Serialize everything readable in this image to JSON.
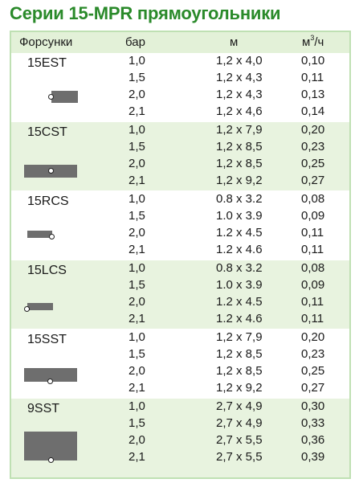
{
  "title": "Серии 15-MPR прямоугольники",
  "header": {
    "nozzles": "Форсунки",
    "pressure": "бар",
    "distance": "м",
    "flow_base": "м",
    "flow_sup": "3",
    "flow_tail": "/ч"
  },
  "groups": [
    {
      "name": "15EST",
      "icon": "rectangle-spray-end-strip-icon",
      "rows": [
        {
          "bar": "1,0",
          "m": "1,2 x 4,0",
          "q": "0,10"
        },
        {
          "bar": "1,5",
          "m": "1,2 x 4,3",
          "q": "0,11"
        },
        {
          "bar": "2,0",
          "m": "1,2 x 4,3",
          "q": "0,13"
        },
        {
          "bar": "2,1",
          "m": "1,2 x 4,6",
          "q": "0,14"
        }
      ]
    },
    {
      "name": "15CST",
      "icon": "rectangle-spray-center-strip-icon",
      "rows": [
        {
          "bar": "1,0",
          "m": "1,2 x 7,9",
          "q": "0,20"
        },
        {
          "bar": "1,5",
          "m": "1,2 x 8,5",
          "q": "0,23"
        },
        {
          "bar": "2,0",
          "m": "1,2 x 8,5",
          "q": "0,25"
        },
        {
          "bar": "2,1",
          "m": "1,2 x 9,2",
          "q": "0,27"
        }
      ]
    },
    {
      "name": "15RCS",
      "icon": "rectangle-spray-right-corner-strip-icon",
      "rows": [
        {
          "bar": "1,0",
          "m": "0.8 x 3.2",
          "q": "0,08"
        },
        {
          "bar": "1,5",
          "m": "1.0 x 3.9",
          "q": "0,09"
        },
        {
          "bar": "2,0",
          "m": "1.2 x 4.5",
          "q": "0,11"
        },
        {
          "bar": "2,1",
          "m": "1.2 x 4.6",
          "q": "0,11"
        }
      ]
    },
    {
      "name": "15LCS",
      "icon": "rectangle-spray-left-corner-strip-icon",
      "rows": [
        {
          "bar": "1,0",
          "m": "0.8 x 3.2",
          "q": "0,08"
        },
        {
          "bar": "1,5",
          "m": "1.0 x 3.9",
          "q": "0,09"
        },
        {
          "bar": "2,0",
          "m": "1.2 x 4.5",
          "q": "0,11"
        },
        {
          "bar": "2,1",
          "m": "1.2 x 4.6",
          "q": "0,11"
        }
      ]
    },
    {
      "name": "15SST",
      "icon": "rectangle-spray-side-strip-icon",
      "rows": [
        {
          "bar": "1,0",
          "m": "1,2 x 7,9",
          "q": "0,20"
        },
        {
          "bar": "1,5",
          "m": "1,2 x 8,5",
          "q": "0,23"
        },
        {
          "bar": "2,0",
          "m": "1,2 x 8,5",
          "q": "0,25"
        },
        {
          "bar": "2,1",
          "m": "1,2 x 9,2",
          "q": "0,27"
        }
      ]
    },
    {
      "name": "9SST",
      "icon": "square-spray-side-icon",
      "rows": [
        {
          "bar": "1,0",
          "m": "2,7 x 4,9",
          "q": "0,30"
        },
        {
          "bar": "1,5",
          "m": "2,7 x 4,9",
          "q": "0,33"
        },
        {
          "bar": "2,0",
          "m": "2,7 x 5,5",
          "q": "0,36"
        },
        {
          "bar": "2,1",
          "m": "2,7 x 5,5",
          "q": "0,39"
        }
      ]
    }
  ],
  "colors": {
    "title": "#2a8a2a",
    "border": "#bfe0b3",
    "shade": "#e8f3df",
    "pattern": "#6e6e6e"
  }
}
